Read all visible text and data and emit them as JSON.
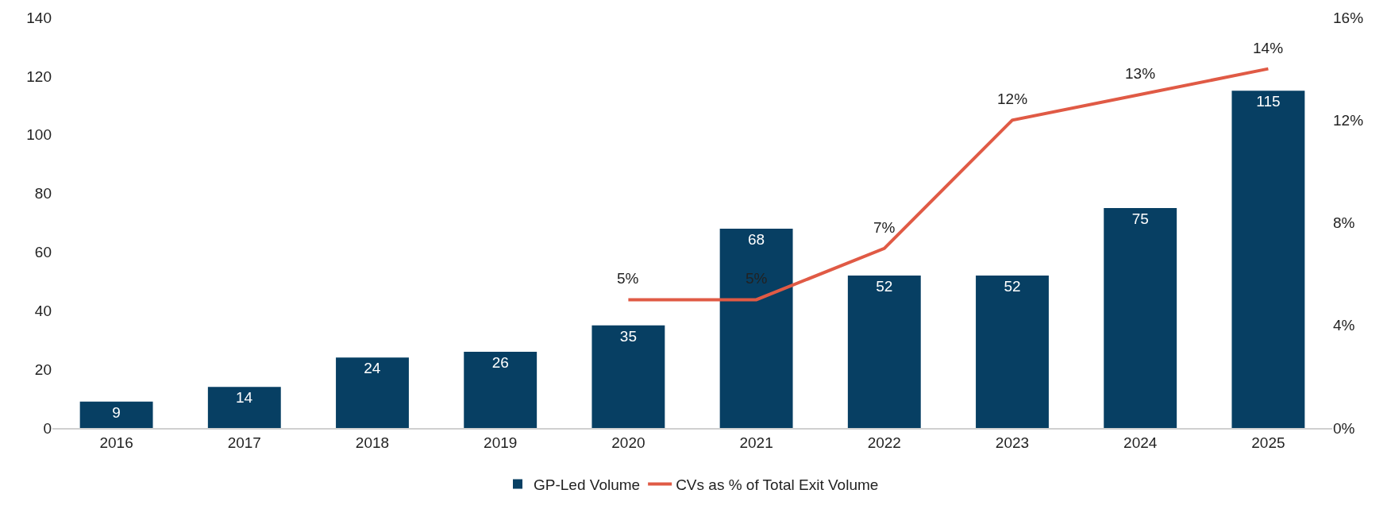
{
  "chart_data": {
    "type": "bar",
    "categories": [
      "2016",
      "2017",
      "2018",
      "2019",
      "2020",
      "2021",
      "2022",
      "2023",
      "2024",
      "2025"
    ],
    "series": [
      {
        "name": "GP-Led Volume",
        "color": "#073f63",
        "values": [
          9,
          14,
          24,
          26,
          35,
          68,
          52,
          52,
          75,
          115
        ]
      },
      {
        "name": "CVs as % of Total Exit Volume",
        "type": "line",
        "axis": "y2",
        "color": "#e05a45",
        "values": [
          null,
          null,
          null,
          null,
          5,
          5,
          7,
          12,
          13,
          14
        ],
        "value_labels": [
          null,
          null,
          null,
          null,
          "5%",
          "5%",
          "7%",
          "12%",
          "13%",
          "14%"
        ]
      }
    ],
    "data_labels": true,
    "ylim": [
      0,
      140
    ],
    "yticks": [
      0,
      20,
      40,
      60,
      80,
      100,
      120,
      140
    ],
    "y2lim": [
      0,
      16
    ],
    "y2ticks": [
      {
        "value": 0,
        "label": "0%"
      },
      {
        "value": 4,
        "label": "4%"
      },
      {
        "value": 8,
        "label": "8%"
      },
      {
        "value": 12,
        "label": "12%"
      },
      {
        "value": 16,
        "label": "16%"
      }
    ],
    "grid": false,
    "legend": "bottom",
    "marker": "none",
    "line_style": "solid"
  }
}
